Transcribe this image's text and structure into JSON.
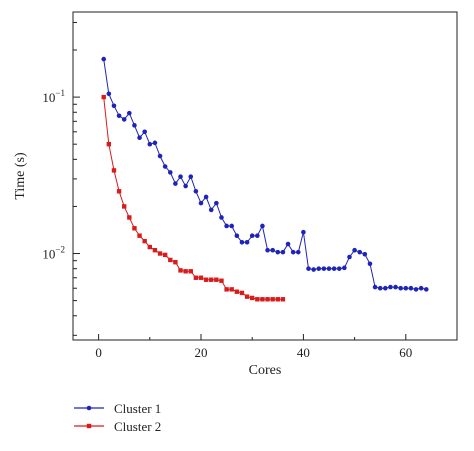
{
  "colors": {
    "cluster1": "#1f24b8",
    "cluster2": "#d81c1c",
    "axis": "#222222"
  },
  "chart_data": {
    "type": "line",
    "xlabel": "Cores",
    "ylabel": "Time (s)",
    "xlim": [
      -5,
      70
    ],
    "ylim": [
      0.0028,
      0.35
    ],
    "yscale": "log",
    "grid": false,
    "legend_position": "bottom-left",
    "x_ticks": [
      0,
      20,
      40,
      60
    ],
    "y_ticks": [
      {
        "value": 0.1,
        "base": "10",
        "exp": "−1"
      },
      {
        "value": 0.01,
        "base": "10",
        "exp": "−2"
      }
    ],
    "series": [
      {
        "name": "Cluster 1",
        "color": "#1f24b8",
        "x": [
          1,
          2,
          3,
          4,
          5,
          6,
          7,
          8,
          9,
          10,
          11,
          12,
          13,
          14,
          15,
          16,
          17,
          18,
          19,
          20,
          21,
          22,
          23,
          24,
          25,
          26,
          27,
          28,
          29,
          30,
          31,
          32,
          33,
          34,
          35,
          36,
          37,
          38,
          39,
          40,
          41,
          42,
          43,
          44,
          45,
          46,
          47,
          48,
          49,
          50,
          51,
          52,
          53,
          54,
          55,
          56,
          57,
          58,
          59,
          60,
          61,
          62,
          63,
          64
        ],
        "y": [
          0.175,
          0.105,
          0.088,
          0.076,
          0.072,
          0.079,
          0.066,
          0.055,
          0.06,
          0.05,
          0.051,
          0.042,
          0.036,
          0.033,
          0.028,
          0.031,
          0.027,
          0.031,
          0.025,
          0.021,
          0.023,
          0.019,
          0.021,
          0.017,
          0.015,
          0.015,
          0.013,
          0.0118,
          0.0118,
          0.013,
          0.013,
          0.015,
          0.0105,
          0.0105,
          0.0102,
          0.0102,
          0.0115,
          0.0102,
          0.0102,
          0.0137,
          0.008,
          0.0079,
          0.008,
          0.008,
          0.008,
          0.008,
          0.008,
          0.0081,
          0.0095,
          0.0105,
          0.0102,
          0.0099,
          0.0086,
          0.0061,
          0.006,
          0.006,
          0.0061,
          0.0061,
          0.006,
          0.006,
          0.006,
          0.0059,
          0.006,
          0.0059
        ]
      },
      {
        "name": "Cluster 2",
        "color": "#d81c1c",
        "x": [
          1,
          2,
          3,
          4,
          5,
          6,
          7,
          8,
          9,
          10,
          11,
          12,
          13,
          14,
          15,
          16,
          17,
          18,
          19,
          20,
          21,
          22,
          23,
          24,
          25,
          26,
          27,
          28,
          29,
          30,
          31,
          32,
          33,
          34,
          35,
          36
        ],
        "y": [
          0.1,
          0.05,
          0.034,
          0.025,
          0.02,
          0.017,
          0.0145,
          0.013,
          0.012,
          0.011,
          0.0105,
          0.01,
          0.0098,
          0.0091,
          0.0088,
          0.0078,
          0.0077,
          0.0077,
          0.007,
          0.007,
          0.0068,
          0.0068,
          0.0068,
          0.0067,
          0.0059,
          0.0059,
          0.0057,
          0.0056,
          0.0053,
          0.0052,
          0.0051,
          0.0051,
          0.0051,
          0.0051,
          0.0051,
          0.0051
        ]
      }
    ]
  }
}
